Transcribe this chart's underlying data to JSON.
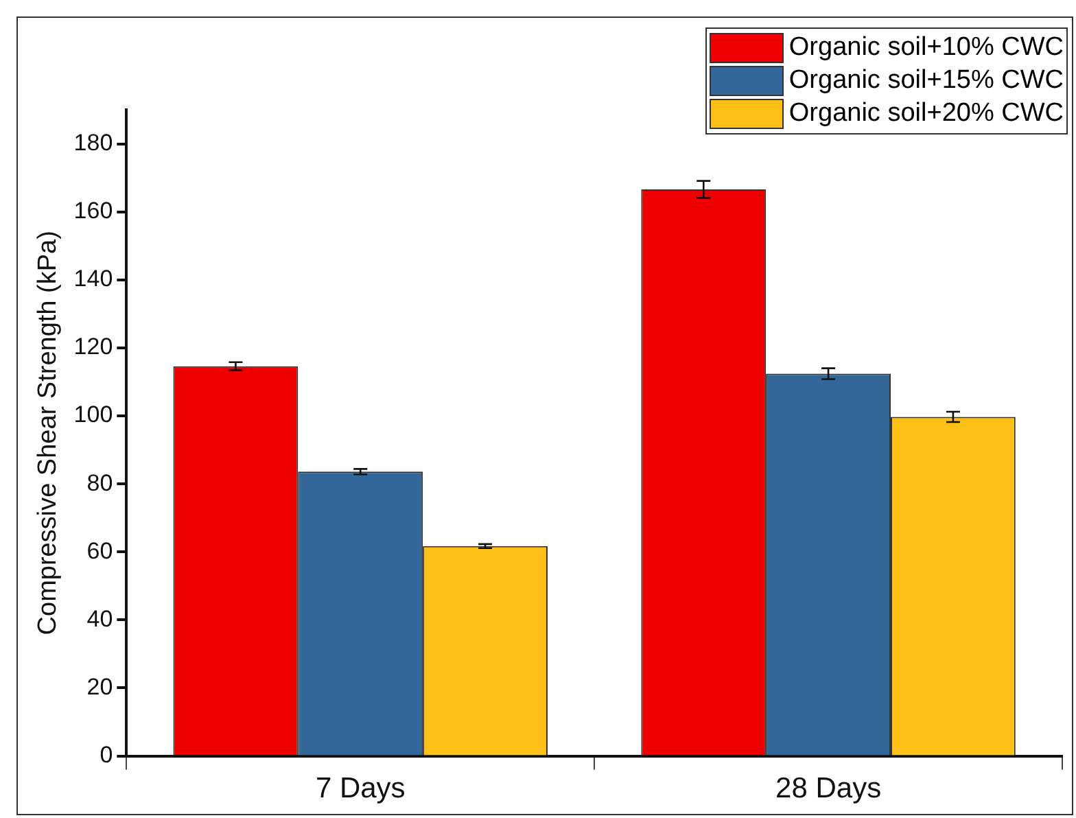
{
  "chart_data": {
    "type": "bar",
    "ylabel": "Compressive Shear Strength (kPa)",
    "categories": [
      "7 Days",
      "28 Days"
    ],
    "series": [
      {
        "name": "Organic soil+10% CWC",
        "color": "#ee0000",
        "values": [
          114.6,
          166.6
        ],
        "errors": [
          1.2,
          2.5
        ]
      },
      {
        "name": "Organic soil+15% CWC",
        "color": "#336699",
        "values": [
          83.6,
          112.4
        ],
        "errors": [
          0.8,
          1.6
        ]
      },
      {
        "name": "Organic soil+20% CWC",
        "color": "#fcc016",
        "values": [
          61.7,
          99.7
        ],
        "errors": [
          0.6,
          1.5
        ]
      }
    ],
    "ylim": [
      0,
      190
    ],
    "yticks": [
      0,
      20,
      40,
      60,
      80,
      100,
      120,
      140,
      160,
      180
    ],
    "grid": false,
    "legend": "top right"
  }
}
